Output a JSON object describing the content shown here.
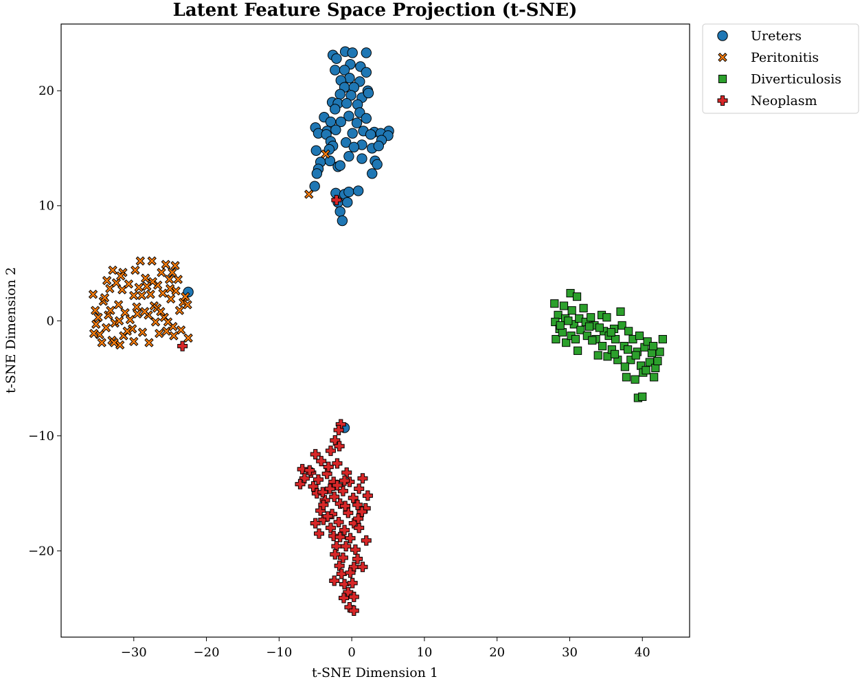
{
  "chart_data": {
    "type": "scatter",
    "title": "Latent Feature Space Projection (t-SNE)",
    "xlabel": "t-SNE Dimension 1",
    "ylabel": "t-SNE Dimension 2",
    "xlim": [
      -40.0,
      46.5
    ],
    "ylim": [
      -27.5,
      25.8
    ],
    "xticks": [
      -30,
      -20,
      -10,
      0,
      10,
      20,
      30,
      40
    ],
    "yticks": [
      -20,
      -10,
      0,
      10,
      20
    ],
    "xtick_labels": [
      "−30",
      "−20",
      "−10",
      "0",
      "10",
      "20",
      "30",
      "40"
    ],
    "ytick_labels": [
      "−20",
      "−10",
      "0",
      "10",
      "20"
    ],
    "grid": false,
    "legend_position": "outside-top-right",
    "series": [
      {
        "name": "Ureters",
        "marker": "circle",
        "color": "#1f77b4",
        "points": [
          [
            -2.6,
            23.1
          ],
          [
            -0.9,
            23.4
          ],
          [
            0.1,
            23.3
          ],
          [
            2.0,
            23.3
          ],
          [
            -2.1,
            22.8
          ],
          [
            -0.2,
            22.3
          ],
          [
            1.2,
            22.1
          ],
          [
            -2.3,
            21.8
          ],
          [
            -1.0,
            21.8
          ],
          [
            2.0,
            21.6
          ],
          [
            -0.3,
            21.1
          ],
          [
            -1.5,
            20.9
          ],
          [
            1.1,
            20.8
          ],
          [
            -1.0,
            20.3
          ],
          [
            2.2,
            20.0
          ],
          [
            0.3,
            20.3
          ],
          [
            -1.6,
            19.7
          ],
          [
            -0.1,
            19.6
          ],
          [
            1.4,
            19.4
          ],
          [
            2.3,
            19.8
          ],
          [
            -2.7,
            19.0
          ],
          [
            -1.9,
            18.9
          ],
          [
            -0.7,
            18.9
          ],
          [
            0.8,
            18.8
          ],
          [
            -2.3,
            18.4
          ],
          [
            1.1,
            18.1
          ],
          [
            -0.4,
            17.8
          ],
          [
            2.0,
            17.6
          ],
          [
            -3.8,
            17.7
          ],
          [
            -2.9,
            17.3
          ],
          [
            -1.5,
            17.3
          ],
          [
            0.7,
            17.2
          ],
          [
            -5.0,
            16.8
          ],
          [
            -3.4,
            16.5
          ],
          [
            -2.2,
            16.6
          ],
          [
            1.6,
            16.5
          ],
          [
            3.1,
            16.4
          ],
          [
            5.1,
            16.5
          ],
          [
            -4.6,
            16.3
          ],
          [
            -3.5,
            16.2
          ],
          [
            0.1,
            16.3
          ],
          [
            2.6,
            16.2
          ],
          [
            4.0,
            16.3
          ],
          [
            5.0,
            16.1
          ],
          [
            -2.9,
            15.6
          ],
          [
            -2.6,
            15.2
          ],
          [
            -0.8,
            15.5
          ],
          [
            1.4,
            15.3
          ],
          [
            4.1,
            15.7
          ],
          [
            -4.9,
            14.8
          ],
          [
            -3.1,
            14.9
          ],
          [
            0.3,
            15.1
          ],
          [
            2.8,
            15.0
          ],
          [
            3.7,
            15.2
          ],
          [
            -4.3,
            13.8
          ],
          [
            -3.0,
            13.9
          ],
          [
            -1.9,
            13.4
          ],
          [
            -0.4,
            14.3
          ],
          [
            1.4,
            14.1
          ],
          [
            3.2,
            13.9
          ],
          [
            -4.6,
            13.2
          ],
          [
            -1.6,
            13.5
          ],
          [
            3.5,
            13.6
          ],
          [
            -4.8,
            12.8
          ],
          [
            2.8,
            12.8
          ],
          [
            -5.1,
            11.7
          ],
          [
            -2.2,
            11.1
          ],
          [
            -1.0,
            11.0
          ],
          [
            -0.4,
            11.2
          ],
          [
            0.9,
            11.3
          ],
          [
            -1.9,
            10.3
          ],
          [
            -0.6,
            10.3
          ],
          [
            -1.6,
            9.5
          ],
          [
            -1.3,
            8.7
          ],
          [
            -22.5,
            2.5
          ],
          [
            -1.0,
            -9.3
          ]
        ]
      },
      {
        "name": "Peritonitis",
        "marker": "x",
        "color": "#ff7f0e",
        "points": [
          [
            -35.6,
            2.3
          ],
          [
            -35.3,
            0.9
          ],
          [
            -34.9,
            0.3
          ],
          [
            -35.2,
            -0.3
          ],
          [
            -34.7,
            -1.2
          ],
          [
            -35.5,
            -1.1
          ],
          [
            -34.2,
            1.7
          ],
          [
            -33.5,
            0.5
          ],
          [
            -33.8,
            -0.6
          ],
          [
            -33.3,
            2.8
          ],
          [
            -32.9,
            4.4
          ],
          [
            -32.4,
            3.3
          ],
          [
            -32.1,
            1.4
          ],
          [
            -32.6,
            -0.2
          ],
          [
            -33.0,
            -1.7
          ],
          [
            -31.9,
            -2.1
          ],
          [
            -31.5,
            4.2
          ],
          [
            -31.6,
            2.7
          ],
          [
            -31.2,
            0.7
          ],
          [
            -31.4,
            -1.3
          ],
          [
            -30.7,
            3.2
          ],
          [
            -30.5,
            0.1
          ],
          [
            -30.2,
            -0.7
          ],
          [
            -30.0,
            -1.8
          ],
          [
            -29.6,
            1.2
          ],
          [
            -29.1,
            5.2
          ],
          [
            -29.3,
            2.9
          ],
          [
            -28.9,
            2.2
          ],
          [
            -28.8,
            -1.0
          ],
          [
            -28.4,
            3.7
          ],
          [
            -28.0,
            0.5
          ],
          [
            -27.9,
            -1.9
          ],
          [
            -27.5,
            5.2
          ],
          [
            -27.7,
            2.3
          ],
          [
            -27.2,
            1.3
          ],
          [
            -27.0,
            -0.1
          ],
          [
            -26.7,
            3.1
          ],
          [
            -26.5,
            -1.1
          ],
          [
            -26.2,
            4.2
          ],
          [
            -26.0,
            2.4
          ],
          [
            -25.8,
            0.3
          ],
          [
            -25.5,
            -0.9
          ],
          [
            -25.1,
            3.6
          ],
          [
            -24.9,
            1.9
          ],
          [
            -24.6,
            -0.5
          ],
          [
            -24.3,
            4.8
          ],
          [
            -24.2,
            2.6
          ],
          [
            -23.9,
            3.6
          ],
          [
            -23.7,
            0.9
          ],
          [
            -23.5,
            -0.8
          ],
          [
            -23.2,
            1.6
          ],
          [
            -22.9,
            2.1
          ],
          [
            -22.6,
            1.4
          ],
          [
            -22.5,
            -1.5
          ],
          [
            -34.0,
            2.0
          ],
          [
            -32.0,
            0.0
          ],
          [
            -30.0,
            2.2
          ],
          [
            -28.5,
            0.8
          ],
          [
            -26.8,
            1.1
          ],
          [
            -25.3,
            -0.1
          ],
          [
            -33.7,
            3.5
          ],
          [
            -31.8,
            3.9
          ],
          [
            -29.8,
            4.4
          ],
          [
            -27.4,
            3.4
          ],
          [
            -25.6,
            4.9
          ],
          [
            -24.7,
            4.2
          ],
          [
            -26.3,
            0.8
          ],
          [
            -30.9,
            -0.9
          ],
          [
            -32.7,
            -1.9
          ],
          [
            -34.4,
            -1.9
          ],
          [
            -33.2,
            0.9
          ],
          [
            -29.5,
            0.6
          ],
          [
            -28.2,
            3.0
          ],
          [
            -25.0,
            2.8
          ],
          [
            -24.5,
            -1.3
          ],
          [
            -5.9,
            11.0
          ],
          [
            -3.6,
            14.5
          ]
        ]
      },
      {
        "name": "Diverticulosis",
        "marker": "square",
        "color": "#2ca02c",
        "points": [
          [
            27.9,
            1.5
          ],
          [
            28.4,
            0.5
          ],
          [
            28.0,
            -0.1
          ],
          [
            28.6,
            -0.7
          ],
          [
            28.1,
            -1.6
          ],
          [
            29.2,
            1.3
          ],
          [
            29.4,
            0.2
          ],
          [
            29.0,
            -1.0
          ],
          [
            29.5,
            -1.9
          ],
          [
            30.1,
            2.4
          ],
          [
            30.3,
            0.9
          ],
          [
            30.6,
            -0.3
          ],
          [
            30.2,
            -1.3
          ],
          [
            31.0,
            2.1
          ],
          [
            31.3,
            0.2
          ],
          [
            31.5,
            -0.8
          ],
          [
            31.1,
            -2.6
          ],
          [
            31.9,
            1.1
          ],
          [
            32.2,
            -0.1
          ],
          [
            32.4,
            -1.3
          ],
          [
            32.9,
            0.3
          ],
          [
            33.4,
            -0.4
          ],
          [
            33.6,
            -1.6
          ],
          [
            33.9,
            -3.0
          ],
          [
            34.4,
            0.5
          ],
          [
            34.7,
            -0.9
          ],
          [
            34.5,
            -2.2
          ],
          [
            35.1,
            0.3
          ],
          [
            35.4,
            -1.3
          ],
          [
            35.2,
            -3.1
          ],
          [
            35.8,
            -2.5
          ],
          [
            36.1,
            -0.7
          ],
          [
            36.3,
            -1.6
          ],
          [
            36.6,
            -3.4
          ],
          [
            37.0,
            0.8
          ],
          [
            37.2,
            -0.4
          ],
          [
            37.5,
            -2.2
          ],
          [
            37.8,
            -4.9
          ],
          [
            38.1,
            -0.9
          ],
          [
            38.4,
            -3.4
          ],
          [
            38.7,
            -1.6
          ],
          [
            39.0,
            -5.1
          ],
          [
            39.3,
            -2.7
          ],
          [
            39.6,
            -1.3
          ],
          [
            39.8,
            -3.9
          ],
          [
            40.1,
            -4.5
          ],
          [
            40.3,
            -2.3
          ],
          [
            40.7,
            -1.8
          ],
          [
            41.0,
            -3.6
          ],
          [
            41.3,
            -2.8
          ],
          [
            41.6,
            -4.9
          ],
          [
            41.8,
            -4.1
          ],
          [
            42.1,
            -3.5
          ],
          [
            42.4,
            -2.7
          ],
          [
            42.8,
            -1.6
          ],
          [
            39.4,
            -6.7
          ],
          [
            40.0,
            -6.6
          ],
          [
            36.2,
            -2.9
          ],
          [
            38.0,
            -2.5
          ],
          [
            40.5,
            -4.3
          ],
          [
            34.1,
            -0.6
          ],
          [
            32.7,
            -0.5
          ],
          [
            30.8,
            -1.6
          ],
          [
            29.8,
            0.0
          ],
          [
            28.7,
            -0.4
          ],
          [
            41.5,
            -2.2
          ],
          [
            37.6,
            -4.0
          ],
          [
            39.1,
            -3.0
          ],
          [
            35.7,
            -1.0
          ],
          [
            33.1,
            -1.7
          ]
        ]
      },
      {
        "name": "Neoplasm",
        "marker": "plus",
        "color": "#d62728",
        "points": [
          [
            -1.5,
            -9.0
          ],
          [
            -1.8,
            -9.5
          ],
          [
            -2.3,
            -10.4
          ],
          [
            -1.7,
            -10.9
          ],
          [
            -2.9,
            -11.3
          ],
          [
            -5.0,
            -11.6
          ],
          [
            -4.2,
            -12.2
          ],
          [
            -2.0,
            -12.4
          ],
          [
            -6.8,
            -12.9
          ],
          [
            -5.6,
            -13.2
          ],
          [
            -3.4,
            -13.3
          ],
          [
            -0.7,
            -13.2
          ],
          [
            -6.5,
            -13.7
          ],
          [
            -4.6,
            -13.8
          ],
          [
            -2.5,
            -14.0
          ],
          [
            -0.3,
            -14.0
          ],
          [
            1.5,
            -13.7
          ],
          [
            -7.1,
            -14.2
          ],
          [
            -5.3,
            -14.4
          ],
          [
            -3.0,
            -14.6
          ],
          [
            -1.2,
            -14.8
          ],
          [
            1.0,
            -14.6
          ],
          [
            -4.8,
            -15.0
          ],
          [
            -2.4,
            -15.3
          ],
          [
            0.2,
            -15.4
          ],
          [
            2.2,
            -15.2
          ],
          [
            -3.7,
            -15.6
          ],
          [
            -1.6,
            -15.9
          ],
          [
            0.8,
            -16.0
          ],
          [
            1.9,
            -16.3
          ],
          [
            -4.3,
            -16.5
          ],
          [
            -2.7,
            -16.8
          ],
          [
            -0.5,
            -16.7
          ],
          [
            1.4,
            -16.6
          ],
          [
            -3.9,
            -17.3
          ],
          [
            -1.8,
            -17.5
          ],
          [
            0.3,
            -17.6
          ],
          [
            -5.0,
            -17.6
          ],
          [
            -2.9,
            -18.0
          ],
          [
            -1.0,
            -18.2
          ],
          [
            1.0,
            -18.0
          ],
          [
            -4.5,
            -18.5
          ],
          [
            -2.5,
            -18.7
          ],
          [
            -0.2,
            -18.9
          ],
          [
            2.0,
            -19.1
          ],
          [
            -2.1,
            -19.6
          ],
          [
            0.5,
            -19.9
          ],
          [
            -2.3,
            -20.3
          ],
          [
            -1.2,
            -20.6
          ],
          [
            0.8,
            -20.7
          ],
          [
            -1.7,
            -21.3
          ],
          [
            0.3,
            -21.4
          ],
          [
            1.5,
            -21.4
          ],
          [
            -1.4,
            -22.0
          ],
          [
            -2.4,
            -22.6
          ],
          [
            -1.0,
            -22.9
          ],
          [
            0.1,
            -22.8
          ],
          [
            -0.5,
            -23.6
          ],
          [
            0.3,
            -24.0
          ],
          [
            -0.3,
            -24.9
          ],
          [
            0.3,
            -25.2
          ],
          [
            -23.3,
            -2.2
          ],
          [
            -2.1,
            10.5
          ],
          [
            -3.2,
            -12.7
          ],
          [
            -1.0,
            -13.9
          ],
          [
            -4.0,
            -14.9
          ],
          [
            -0.9,
            -16.1
          ],
          [
            -3.3,
            -17.0
          ],
          [
            -1.6,
            -18.8
          ],
          [
            -0.8,
            -19.6
          ],
          [
            0.9,
            -17.2
          ],
          [
            -2.0,
            -14.3
          ],
          [
            -5.8,
            -13.0
          ],
          [
            -0.2,
            -21.9
          ],
          [
            -1.1,
            -24.1
          ],
          [
            -3.9,
            -16.0
          ]
        ]
      }
    ]
  }
}
